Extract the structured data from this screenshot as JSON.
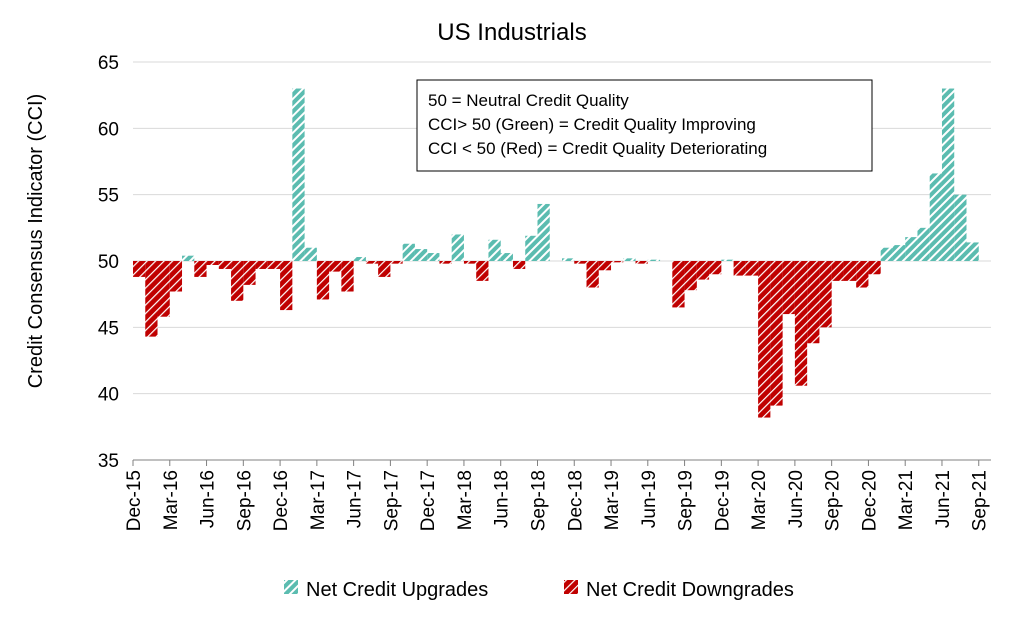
{
  "chart_data": {
    "type": "bar",
    "title": "US Industrials",
    "ylabel": "Credit Consensus Indicator (CCI)",
    "xlabel": "",
    "ylim": [
      35,
      65
    ],
    "yticks": [
      35,
      40,
      45,
      50,
      55,
      60,
      65
    ],
    "baseline": 50,
    "x_tick_labels": [
      "Dec-15",
      "Mar-16",
      "Jun-16",
      "Sep-16",
      "Dec-16",
      "Mar-17",
      "Jun-17",
      "Sep-17",
      "Dec-17",
      "Mar-18",
      "Jun-18",
      "Sep-18",
      "Dec-18",
      "Mar-19",
      "Jun-19",
      "Sep-19",
      "Dec-19",
      "Mar-20",
      "Jun-20",
      "Sep-20",
      "Dec-20",
      "Mar-21",
      "Jun-21",
      "Sep-21"
    ],
    "months": [
      "Dec-15",
      "Jan-16",
      "Feb-16",
      "Mar-16",
      "Apr-16",
      "May-16",
      "Jun-16",
      "Jul-16",
      "Aug-16",
      "Sep-16",
      "Oct-16",
      "Nov-16",
      "Dec-16",
      "Jan-17",
      "Feb-17",
      "Mar-17",
      "Apr-17",
      "May-17",
      "Jun-17",
      "Jul-17",
      "Aug-17",
      "Sep-17",
      "Oct-17",
      "Nov-17",
      "Dec-17",
      "Jan-18",
      "Feb-18",
      "Mar-18",
      "Apr-18",
      "May-18",
      "Jun-18",
      "Jul-18",
      "Aug-18",
      "Sep-18",
      "Oct-18",
      "Nov-18",
      "Dec-18",
      "Jan-19",
      "Feb-19",
      "Mar-19",
      "Apr-19",
      "May-19",
      "Jun-19",
      "Jul-19",
      "Aug-19",
      "Sep-19",
      "Oct-19",
      "Nov-19",
      "Dec-19",
      "Jan-20",
      "Feb-20",
      "Mar-20",
      "Apr-20",
      "May-20",
      "Jun-20",
      "Jul-20",
      "Aug-20",
      "Sep-20",
      "Oct-20",
      "Nov-20",
      "Dec-20",
      "Jan-21",
      "Feb-21",
      "Mar-21",
      "Apr-21",
      "May-21",
      "Jun-21",
      "Jul-21",
      "Aug-21",
      "Sep-21"
    ],
    "values": [
      48.8,
      44.3,
      45.8,
      47.7,
      50.4,
      48.8,
      49.7,
      49.4,
      47.0,
      48.2,
      49.4,
      49.4,
      46.3,
      63.0,
      51.0,
      47.1,
      49.2,
      47.7,
      50.3,
      49.8,
      48.8,
      49.8,
      51.3,
      50.9,
      50.6,
      49.8,
      52.0,
      49.8,
      48.5,
      51.6,
      50.6,
      49.4,
      51.9,
      54.3,
      null,
      50.2,
      49.8,
      48.0,
      49.3,
      49.9,
      50.2,
      49.8,
      50.1,
      null,
      46.5,
      47.8,
      48.6,
      49.0,
      50.1,
      48.9,
      48.9,
      38.2,
      39.1,
      46.0,
      40.6,
      43.8,
      45.0,
      48.5,
      48.5,
      48.0,
      49.0,
      51.0,
      51.2,
      51.8,
      52.5,
      56.6,
      63.0,
      55.0,
      51.4,
      null
    ],
    "series": [
      {
        "name": "Net Credit Upgrades",
        "color": "#5bbcb0",
        "rule": "value > 50"
      },
      {
        "name": "Net Credit Downgrades",
        "color": "#c00000",
        "rule": "value < 50"
      }
    ],
    "annotation": [
      "50 = Neutral Credit Quality",
      "CCI> 50 (Green) = Credit Quality Improving",
      "CCI < 50 (Red) = Credit Quality Deteriorating"
    ],
    "grid": true,
    "legend_position": "bottom"
  }
}
